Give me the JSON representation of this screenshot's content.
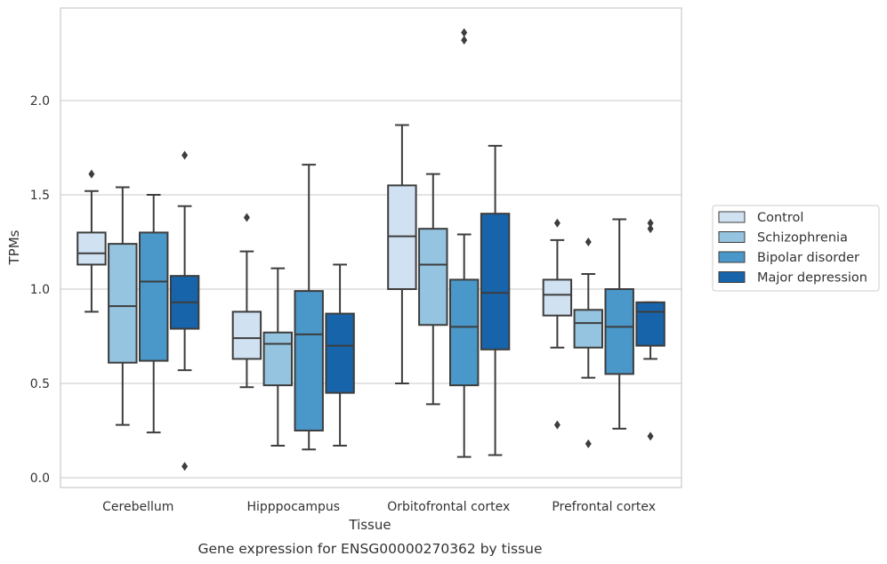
{
  "chart_data": {
    "type": "box",
    "xlabel": "Tissue",
    "ylabel": "TPMs",
    "caption": "Gene expression for ENSG00000270362 by tissue",
    "ylim": [
      -0.04,
      2.5
    ],
    "y_ticks": [
      0.0,
      0.5,
      1.0,
      1.5,
      2.0
    ],
    "y_tick_labels": [
      "0.0",
      "0.5",
      "1.0",
      "1.5",
      "2.0"
    ],
    "grid": "horizontal",
    "legend_position": "right",
    "categories": [
      "Cerebellum",
      "Hipppocampus",
      "Orbitofrontal cortex",
      "Prefrontal cortex"
    ],
    "series": [
      {
        "name": "Control",
        "color": "#d0e1f2",
        "boxes": [
          {
            "whisker_low": 0.88,
            "q1": 1.13,
            "median": 1.19,
            "q3": 1.3,
            "whisker_high": 1.52,
            "outliers": [
              1.61
            ]
          },
          {
            "whisker_low": 0.48,
            "q1": 0.63,
            "median": 0.74,
            "q3": 0.88,
            "whisker_high": 1.2,
            "outliers": [
              1.38
            ]
          },
          {
            "whisker_low": 0.5,
            "q1": 1.0,
            "median": 1.28,
            "q3": 1.55,
            "whisker_high": 1.87,
            "outliers": []
          },
          {
            "whisker_low": 0.69,
            "q1": 0.86,
            "median": 0.97,
            "q3": 1.05,
            "whisker_high": 1.26,
            "outliers": [
              1.35,
              0.28
            ]
          }
        ]
      },
      {
        "name": "Schizophrenia",
        "color": "#94c4df",
        "boxes": [
          {
            "whisker_low": 0.28,
            "q1": 0.61,
            "median": 0.91,
            "q3": 1.24,
            "whisker_high": 1.54,
            "outliers": []
          },
          {
            "whisker_low": 0.17,
            "q1": 0.49,
            "median": 0.71,
            "q3": 0.77,
            "whisker_high": 1.11,
            "outliers": []
          },
          {
            "whisker_low": 0.39,
            "q1": 0.81,
            "median": 1.13,
            "q3": 1.32,
            "whisker_high": 1.61,
            "outliers": []
          },
          {
            "whisker_low": 0.53,
            "q1": 0.69,
            "median": 0.82,
            "q3": 0.89,
            "whisker_high": 1.08,
            "outliers": [
              1.25,
              0.18
            ]
          }
        ]
      },
      {
        "name": "Bipolar disorder",
        "color": "#4a98c9",
        "boxes": [
          {
            "whisker_low": 0.24,
            "q1": 0.62,
            "median": 1.04,
            "q3": 1.3,
            "whisker_high": 1.5,
            "outliers": []
          },
          {
            "whisker_low": 0.15,
            "q1": 0.25,
            "median": 0.76,
            "q3": 0.99,
            "whisker_high": 1.66,
            "outliers": []
          },
          {
            "whisker_low": 0.11,
            "q1": 0.49,
            "median": 0.8,
            "q3": 1.05,
            "whisker_high": 1.29,
            "outliers": [
              2.36,
              2.32
            ]
          },
          {
            "whisker_low": 0.26,
            "q1": 0.55,
            "median": 0.8,
            "q3": 1.0,
            "whisker_high": 1.37,
            "outliers": []
          }
        ]
      },
      {
        "name": "Major depression",
        "color": "#1764ab",
        "boxes": [
          {
            "whisker_low": 0.57,
            "q1": 0.79,
            "median": 0.93,
            "q3": 1.07,
            "whisker_high": 1.44,
            "outliers": [
              1.71,
              0.06
            ]
          },
          {
            "whisker_low": 0.17,
            "q1": 0.45,
            "median": 0.7,
            "q3": 0.87,
            "whisker_high": 1.13,
            "outliers": []
          },
          {
            "whisker_low": 0.12,
            "q1": 0.68,
            "median": 0.98,
            "q3": 1.4,
            "whisker_high": 1.76,
            "outliers": []
          },
          {
            "whisker_low": 0.63,
            "q1": 0.7,
            "median": 0.88,
            "q3": 0.93,
            "whisker_high": 0.93,
            "outliers": [
              1.35,
              1.32,
              0.22
            ]
          }
        ]
      }
    ]
  }
}
